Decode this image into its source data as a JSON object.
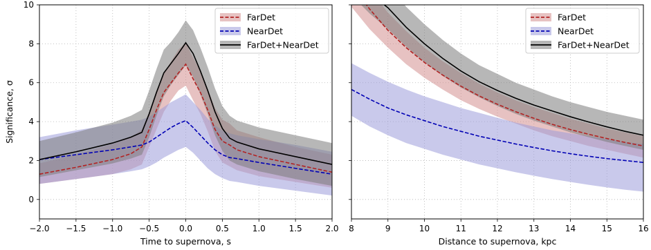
{
  "colors": {
    "fardet": "#b22222",
    "fardet_band": "#d4908f",
    "neardet": "#0000b4",
    "neardet_band": "#9d9ddb",
    "combined": "#000000",
    "combined_band": "#7c7c7c"
  },
  "chart_data": [
    {
      "type": "line",
      "panel": "left",
      "xlabel": "Time to supernova, s",
      "ylabel": "Significance, σ",
      "xlim": [
        -2.0,
        2.0
      ],
      "ylim": [
        -1,
        10
      ],
      "xticks": [
        "−2.0",
        "−1.5",
        "−1.0",
        "−0.5",
        "0.0",
        "0.5",
        "1.0",
        "1.5",
        "2.0"
      ],
      "xtick_values": [
        -2.0,
        -1.5,
        -1.0,
        -0.5,
        0.0,
        0.5,
        1.0,
        1.5,
        2.0
      ],
      "yticks": [
        "0",
        "2",
        "4",
        "6",
        "8",
        "10"
      ],
      "ytick_values": [
        0,
        2,
        4,
        6,
        8,
        10
      ],
      "grid": true,
      "legend_position": "top-right",
      "x": [
        -2.0,
        -1.5,
        -1.0,
        -0.75,
        -0.6,
        -0.5,
        -0.4,
        -0.3,
        -0.2,
        -0.1,
        0.0,
        0.1,
        0.2,
        0.3,
        0.4,
        0.5,
        0.6,
        0.7,
        1.0,
        1.5,
        2.0
      ],
      "series": [
        {
          "name": "FarDet",
          "key": "fardet",
          "style": "dashed",
          "values": [
            1.3,
            1.65,
            2.05,
            2.35,
            2.7,
            3.6,
            4.6,
            5.5,
            6.0,
            6.5,
            6.95,
            6.2,
            5.5,
            4.6,
            3.6,
            3.0,
            2.8,
            2.55,
            2.2,
            1.8,
            1.4
          ],
          "lower": [
            0.8,
            1.05,
            1.3,
            1.55,
            1.8,
            2.7,
            3.6,
            4.5,
            5.1,
            5.6,
            5.85,
            5.1,
            4.4,
            3.5,
            2.5,
            1.9,
            1.7,
            1.5,
            1.2,
            0.9,
            0.6
          ],
          "upper": [
            1.85,
            2.3,
            2.85,
            3.2,
            3.6,
            4.5,
            5.6,
            6.5,
            7.1,
            7.7,
            8.05,
            7.3,
            6.6,
            5.7,
            4.7,
            4.1,
            3.9,
            3.55,
            3.2,
            2.7,
            2.3
          ]
        },
        {
          "name": "NearDet",
          "key": "neardet",
          "style": "dashed",
          "values": [
            2.05,
            2.3,
            2.55,
            2.7,
            2.8,
            2.95,
            3.2,
            3.45,
            3.7,
            3.9,
            4.05,
            3.7,
            3.3,
            2.9,
            2.55,
            2.3,
            2.15,
            2.1,
            1.9,
            1.6,
            1.3
          ],
          "lower": [
            0.8,
            1.05,
            1.3,
            1.45,
            1.55,
            1.7,
            1.9,
            2.15,
            2.35,
            2.55,
            2.7,
            2.4,
            2.0,
            1.6,
            1.3,
            1.1,
            0.95,
            0.9,
            0.7,
            0.45,
            0.2
          ],
          "upper": [
            3.2,
            3.55,
            3.85,
            4.0,
            4.1,
            4.25,
            4.5,
            4.75,
            5.0,
            5.2,
            5.4,
            5.0,
            4.6,
            4.15,
            3.8,
            3.55,
            3.4,
            3.3,
            3.1,
            2.8,
            2.45
          ]
        },
        {
          "name": "FarDet+NearDet",
          "key": "combined",
          "style": "solid",
          "values": [
            2.05,
            2.45,
            2.9,
            3.2,
            3.45,
            4.4,
            5.5,
            6.5,
            7.0,
            7.5,
            8.05,
            7.5,
            6.6,
            5.6,
            4.5,
            3.65,
            3.15,
            2.95,
            2.6,
            2.2,
            1.8
          ],
          "lower": [
            1.15,
            1.5,
            1.85,
            2.1,
            2.3,
            3.2,
            4.3,
            5.3,
            5.9,
            6.4,
            6.9,
            6.3,
            5.4,
            4.4,
            3.3,
            2.5,
            2.0,
            1.8,
            1.45,
            1.05,
            0.7
          ],
          "upper": [
            3.0,
            3.45,
            3.95,
            4.3,
            4.6,
            5.6,
            6.7,
            7.7,
            8.1,
            8.6,
            9.2,
            8.7,
            7.8,
            6.8,
            5.7,
            4.8,
            4.3,
            4.05,
            3.7,
            3.3,
            2.9
          ]
        }
      ]
    },
    {
      "type": "line",
      "panel": "right",
      "xlabel": "Distance to supernova, kpc",
      "ylabel": "",
      "xlim": [
        8,
        16
      ],
      "ylim": [
        -1,
        10
      ],
      "xticks": [
        "8",
        "9",
        "10",
        "11",
        "12",
        "13",
        "14",
        "15",
        "16"
      ],
      "xtick_values": [
        8,
        9,
        10,
        11,
        12,
        13,
        14,
        15,
        16
      ],
      "yticks": [],
      "ytick_values": [
        0,
        2,
        4,
        6,
        8,
        10
      ],
      "grid": true,
      "legend_position": "top-right",
      "x": [
        8,
        8.5,
        9,
        9.5,
        10,
        10.5,
        11,
        11.5,
        12,
        12.5,
        13,
        13.5,
        14,
        14.5,
        15,
        15.5,
        16
      ],
      "series": [
        {
          "name": "FarDet",
          "key": "fardet",
          "style": "dashed",
          "values": [
            11.0,
            9.78,
            8.69,
            7.8,
            7.04,
            6.39,
            5.82,
            5.32,
            4.89,
            4.51,
            4.17,
            3.86,
            3.59,
            3.35,
            3.13,
            2.93,
            2.75
          ],
          "lower": [
            9.9,
            8.75,
            7.8,
            6.95,
            6.25,
            5.65,
            5.1,
            4.65,
            4.25,
            3.9,
            3.55,
            3.25,
            3.0,
            2.75,
            2.55,
            2.35,
            2.15
          ],
          "upper": [
            12.2,
            10.8,
            9.6,
            8.65,
            7.8,
            7.1,
            6.5,
            5.95,
            5.5,
            5.1,
            4.75,
            4.45,
            4.15,
            3.9,
            3.65,
            3.45,
            3.25
          ]
        },
        {
          "name": "NearDet",
          "key": "neardet",
          "style": "dashed",
          "values": [
            5.65,
            5.15,
            4.7,
            4.35,
            4.05,
            3.75,
            3.5,
            3.25,
            3.05,
            2.85,
            2.67,
            2.5,
            2.35,
            2.22,
            2.1,
            2.0,
            1.9
          ],
          "lower": [
            4.3,
            3.75,
            3.3,
            2.9,
            2.6,
            2.3,
            2.05,
            1.8,
            1.6,
            1.4,
            1.22,
            1.05,
            0.9,
            0.75,
            0.62,
            0.5,
            0.4
          ],
          "upper": [
            7.0,
            6.5,
            6.05,
            5.65,
            5.3,
            5.0,
            4.7,
            4.45,
            4.2,
            3.95,
            3.75,
            3.55,
            3.4,
            3.25,
            3.1,
            2.95,
            2.85
          ]
        },
        {
          "name": "FarDet+NearDet",
          "key": "combined",
          "style": "solid",
          "values": [
            11.5,
            10.6,
            9.85,
            8.85,
            8.0,
            7.25,
            6.6,
            6.05,
            5.6,
            5.2,
            4.85,
            4.55,
            4.25,
            3.98,
            3.73,
            3.5,
            3.3
          ],
          "lower": [
            10.5,
            9.55,
            8.75,
            7.85,
            7.05,
            6.35,
            5.75,
            5.25,
            4.8,
            4.4,
            4.05,
            3.75,
            3.45,
            3.2,
            2.95,
            2.75,
            2.55
          ],
          "upper": [
            12.6,
            11.7,
            11.0,
            9.9,
            9.0,
            8.2,
            7.5,
            6.9,
            6.45,
            6.0,
            5.65,
            5.3,
            5.0,
            4.75,
            4.5,
            4.3,
            4.1
          ]
        }
      ]
    }
  ]
}
